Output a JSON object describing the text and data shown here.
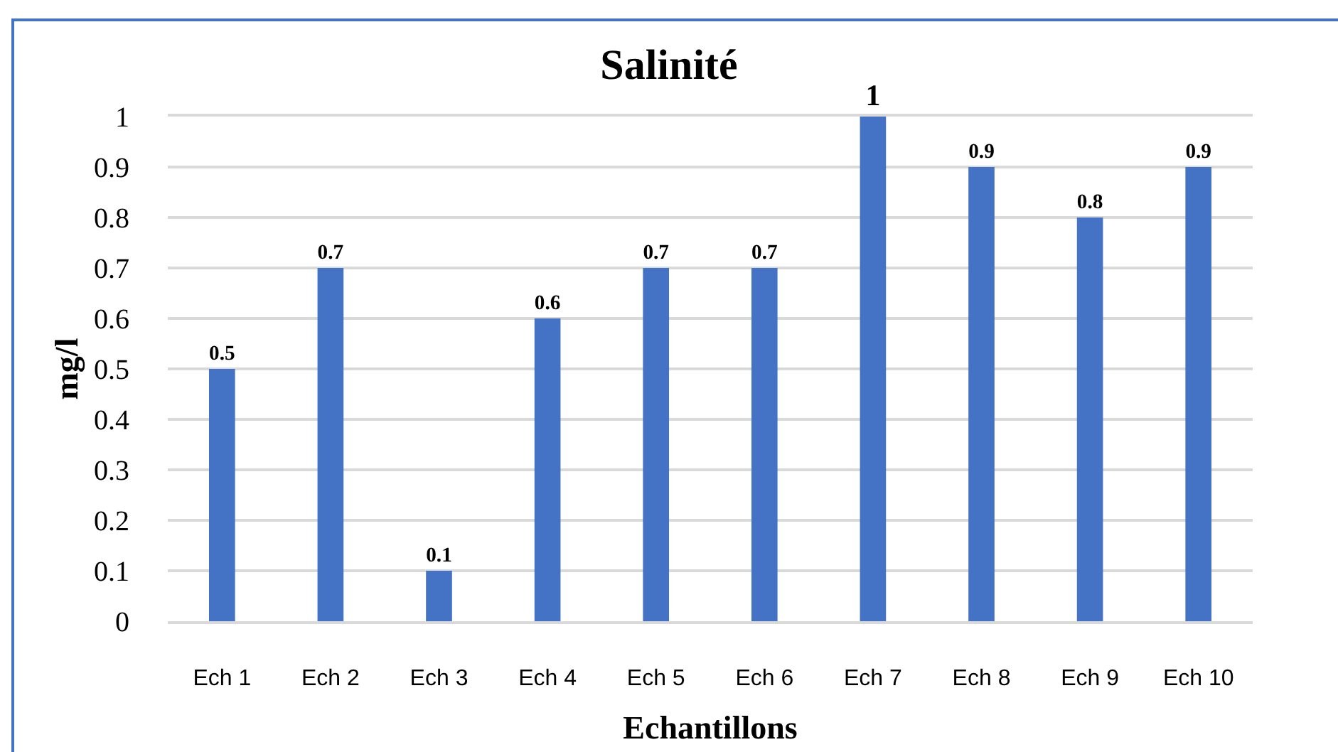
{
  "chart_data": {
    "type": "bar",
    "title": "Salinité",
    "xlabel": "Echantillons",
    "ylabel": "mg/l",
    "categories": [
      "Ech 1",
      "Ech 2",
      "Ech 3",
      "Ech 4",
      "Ech 5",
      "Ech 6",
      "Ech 7",
      "Ech 8",
      "Ech 9",
      "Ech 10"
    ],
    "values": [
      0.5,
      0.7,
      0.1,
      0.6,
      0.7,
      0.7,
      1,
      0.9,
      0.8,
      0.9
    ],
    "color": "#4472c4",
    "ylim": [
      0,
      1
    ],
    "yticks": [
      0,
      0.1,
      0.2,
      0.3,
      0.4,
      0.5,
      0.6,
      0.7,
      0.8,
      0.9,
      1
    ],
    "grid": "y",
    "data_labels": true
  }
}
